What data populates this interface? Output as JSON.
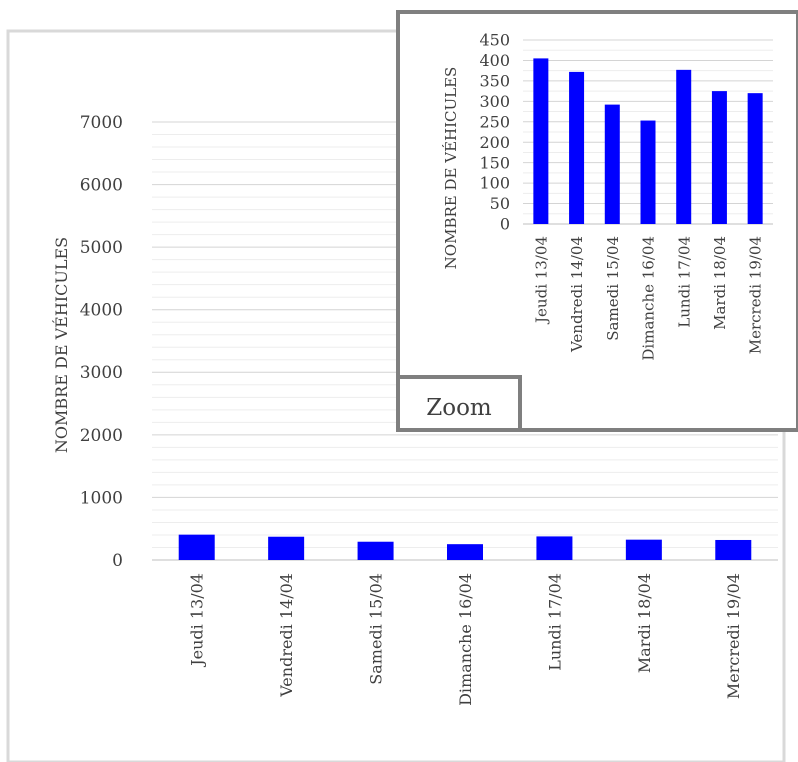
{
  "chart_data": [
    {
      "type": "bar",
      "categories": [
        "Jeudi 13/04",
        "Vendredi 14/04",
        "Samedi 15/04",
        "Dimanche 16/04",
        "Lundi 17/04",
        "Mardi 18/04",
        "Mercredi 19/04"
      ],
      "values": [
        405,
        372,
        292,
        253,
        377,
        325,
        320
      ],
      "title": "",
      "xlabel": "",
      "ylabel": "NOMBRE DE VÉHICULES",
      "ylim": [
        0,
        7000
      ],
      "yticks": [
        0,
        1000,
        2000,
        3000,
        4000,
        5000,
        6000,
        7000
      ],
      "grid": true,
      "bar_color": "#0000ff"
    },
    {
      "type": "bar",
      "categories": [
        "Jeudi 13/04",
        "Vendredi 14/04",
        "Samedi 15/04",
        "Dimanche 16/04",
        "Lundi 17/04",
        "Mardi 18/04",
        "Mercredi 19/04"
      ],
      "values": [
        405,
        372,
        292,
        253,
        377,
        325,
        320
      ],
      "title": "",
      "xlabel": "",
      "ylabel": "NOMBRE DE VÉHICULES",
      "ylim": [
        0,
        450
      ],
      "yticks": [
        0,
        50,
        100,
        150,
        200,
        250,
        300,
        350,
        400,
        450
      ],
      "grid": true,
      "bar_color": "#0000ff",
      "inset_label": "Zoom"
    }
  ]
}
